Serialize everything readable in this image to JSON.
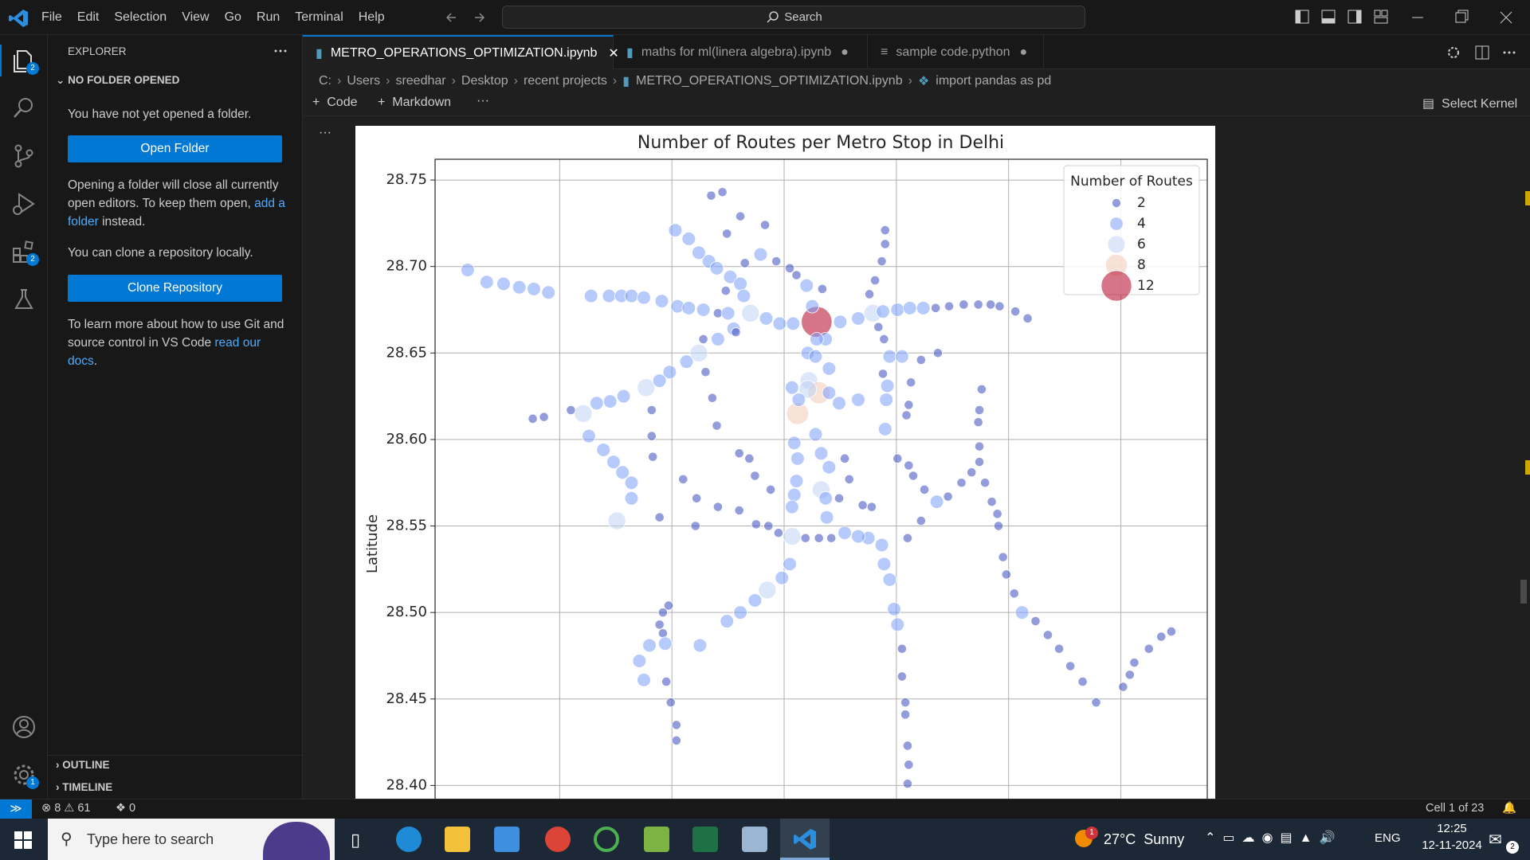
{
  "menu": [
    "File",
    "Edit",
    "Selection",
    "View",
    "Go",
    "Run",
    "Terminal",
    "Help"
  ],
  "search": "Search",
  "activity_badges": {
    "explorer": "2",
    "extensions": "2",
    "settings": "1"
  },
  "tabs": [
    {
      "label": "METRO_OPERATIONS_OPTIMIZATION.ipynb"
    },
    {
      "label": "maths for ml(linera algebra).ipynb"
    },
    {
      "label": "sample code.python"
    }
  ],
  "breadcrumbs": [
    "C:",
    "Users",
    "sreedhar",
    "Desktop",
    "recent projects",
    "METRO_OPERATIONS_OPTIMIZATION.ipynb",
    "import pandas as pd"
  ],
  "toolbar": {
    "code": "Code",
    "markdown": "Markdown",
    "kernel": "Select Kernel"
  },
  "sidebar": {
    "title": "EXPLORER",
    "section": "NO FOLDER OPENED",
    "text1": "You have not yet opened a folder.",
    "open_button": "Open Folder",
    "text2_before": "Opening a folder will close all currently open editors. To keep them open,",
    "text2_link": "add a folder",
    "text2_after": "instead.",
    "text3": "You can clone a repository locally.",
    "clone_button": "Clone Repository",
    "text4_before": "To learn more about how to use Git and source control in VS Code",
    "text4_link": "read our docs",
    "text4_after": ".",
    "outline": "OUTLINE",
    "timeline": "TIMELINE"
  },
  "status": {
    "errors": 8,
    "warnings": 61,
    "ports": 0,
    "cell": "Cell 1 of 23"
  },
  "taskbar": {
    "search": "Type here to search",
    "weather_badge": "1",
    "weather": "27°C  Sunny",
    "lang": "ENG",
    "time": "12:25",
    "date": "12-11-2024",
    "notifications": "2"
  },
  "chart_data": {
    "type": "scatter",
    "title": "Number of Routes per Metro Stop in Delhi",
    "y_label": "Latitude",
    "xlim": [
      76.889,
      77.577
    ],
    "xticks": [
      77.0,
      77.1,
      77.2,
      77.3,
      77.4,
      77.5
    ],
    "ylim": [
      28.385,
      28.762
    ],
    "yticks": [
      {
        "value": 28.4,
        "label": "28.40"
      },
      28.45,
      {
        "value": 28.5,
        "label": "28.50"
      },
      28.55,
      {
        "value": 28.6,
        "label": "28.60"
      },
      28.65,
      {
        "value": 28.7,
        "label": "28.70"
      },
      28.75
    ],
    "grid": true,
    "legend": {
      "title": "Number of Routes",
      "position": "upper right",
      "entries": [
        2,
        4,
        6,
        8,
        12
      ],
      "colors": [
        "#3b4cc0",
        "#7b9ff9",
        "#c0d4f5",
        "#f2cbb7",
        "#b40426"
      ]
    },
    "x": [
      76.918,
      76.935,
      76.95,
      76.964,
      76.977,
      76.99,
      77.028,
      77.044,
      77.055,
      77.064,
      77.075,
      77.091,
      77.105,
      77.115,
      77.128,
      77.141,
      77.15,
      77.17,
      77.184,
      77.196,
      77.208,
      77.229,
      77.25,
      77.266,
      77.279,
      77.288,
      77.301,
      77.312,
      77.324,
      77.335,
      77.347,
      77.36,
      77.373,
      77.384,
      77.392,
      77.406,
      77.417,
      77.103,
      77.115,
      77.124,
      77.133,
      77.14,
      77.152,
      77.161,
      77.164,
      77.051,
      77.064,
      77.064,
      77.056,
      77.048,
      77.039,
      77.026,
      77.021,
      77.033,
      77.045,
      77.057,
      77.077,
      77.089,
      77.098,
      77.113,
      77.124,
      77.141,
      77.155,
      77.205,
      77.211,
      77.22,
      77.225,
      77.237,
      77.221,
      77.24,
      77.222,
      77.212,
      77.228,
      77.209,
      77.212,
      77.233,
      77.24,
      77.211,
      77.233,
      77.209,
      77.237,
      77.207,
      77.238,
      77.207,
      77.205,
      77.198,
      77.185,
      77.174,
      77.161,
      77.149,
      77.266,
      77.249,
      77.231,
      77.24,
      77.221,
      77.207,
      77.29,
      77.29,
      77.287,
      77.281,
      77.276,
      77.284,
      77.289,
      77.294,
      77.288,
      77.292,
      77.291,
      77.29,
      77.301,
      77.311,
      77.315,
      77.325,
      77.336,
      77.346,
      77.358,
      77.367,
      77.374,
      77.374,
      77.373,
      77.374,
      77.376,
      77.379,
      77.385,
      77.39,
      77.391,
      77.395,
      77.398,
      77.405,
      77.412,
      77.424,
      77.435,
      77.445,
      77.455,
      77.466,
      77.478,
      77.502,
      77.508,
      77.512,
      77.525,
      77.536,
      77.545,
      77.298,
      77.301,
      77.305,
      77.305,
      77.308,
      77.308,
      77.31,
      77.311,
      77.31,
      77.294,
      77.289,
      77.287,
      77.275,
      77.266,
      77.254,
      77.242,
      77.231,
      77.219,
      77.195,
      77.186,
      77.175,
      77.16,
      77.141,
      77.121,
      77.097,
      77.092,
      77.089,
      77.092,
      77.094,
      77.08,
      77.071,
      77.075,
      77.095,
      77.099,
      77.104,
      77.104,
      77.125,
      77.089,
      77.135,
      77.145,
      77.161,
      77.149,
      77.183,
      77.165,
      77.179,
      77.193,
      77.148,
      77.157,
      77.128,
      77.13,
      77.136,
      77.14,
      77.082,
      77.082,
      77.083,
      77.11,
      77.122,
      77.16,
      77.169,
      77.174,
      77.188,
      77.254,
      77.258,
      77.249,
      77.278,
      77.311,
      77.309,
      77.313,
      77.322,
      77.337,
      76.976,
      76.986,
      77.01,
      77.31,
      77.322,
      77.305,
      77.27,
      77.229,
      77.228,
      77.213,
      77.234
    ],
    "y": [
      28.698,
      28.691,
      28.69,
      28.688,
      28.687,
      28.685,
      28.683,
      28.683,
      28.683,
      28.683,
      28.682,
      28.68,
      28.677,
      28.676,
      28.675,
      28.673,
      28.673,
      28.673,
      28.67,
      28.667,
      28.667,
      28.668,
      28.668,
      28.67,
      28.673,
      28.674,
      28.675,
      28.676,
      28.676,
      28.676,
      28.677,
      28.678,
      28.678,
      28.678,
      28.677,
      28.674,
      28.67,
      28.721,
      28.716,
      28.708,
      28.703,
      28.699,
      28.694,
      28.69,
      28.683,
      28.553,
      28.566,
      28.575,
      28.581,
      28.587,
      28.594,
      28.602,
      28.615,
      28.621,
      28.622,
      28.625,
      28.63,
      28.634,
      28.639,
      28.645,
      28.65,
      28.658,
      28.664,
      28.699,
      28.695,
      28.689,
      28.677,
      28.658,
      28.65,
      28.641,
      28.634,
      28.615,
      28.603,
      28.598,
      28.589,
      28.592,
      28.584,
      28.576,
      28.571,
      28.568,
      28.566,
      28.561,
      28.555,
      28.544,
      28.528,
      28.52,
      28.513,
      28.507,
      28.5,
      28.495,
      28.623,
      28.621,
      28.627,
      28.627,
      28.629,
      28.63,
      28.721,
      28.713,
      28.703,
      28.692,
      28.684,
      28.665,
      28.658,
      28.648,
      28.638,
      28.631,
      28.623,
      28.606,
      28.589,
      28.585,
      28.579,
      28.571,
      28.564,
      28.567,
      28.575,
      28.581,
      28.587,
      28.596,
      28.61,
      28.617,
      28.629,
      28.575,
      28.564,
      28.557,
      28.55,
      28.532,
      28.522,
      28.511,
      28.5,
      28.495,
      28.487,
      28.479,
      28.469,
      28.46,
      28.448,
      28.457,
      28.464,
      28.471,
      28.479,
      28.486,
      28.489,
      28.502,
      28.493,
      28.479,
      28.463,
      28.448,
      28.441,
      28.423,
      28.412,
      28.401,
      28.519,
      28.528,
      28.539,
      28.543,
      28.544,
      28.546,
      28.543,
      28.543,
      28.543,
      28.546,
      28.55,
      28.551,
      28.559,
      28.561,
      28.55,
      28.504,
      28.5,
      28.493,
      28.488,
      28.482,
      28.481,
      28.472,
      28.461,
      28.46,
      28.448,
      28.435,
      28.426,
      28.481,
      28.555,
      28.741,
      28.743,
      28.729,
      28.719,
      28.724,
      28.702,
      28.707,
      28.703,
      28.686,
      28.662,
      28.658,
      28.639,
      28.624,
      28.608,
      28.617,
      28.602,
      28.59,
      28.577,
      28.566,
      28.592,
      28.589,
      28.579,
      28.571,
      28.589,
      28.577,
      28.566,
      28.561,
      28.62,
      28.614,
      28.633,
      28.646,
      28.65,
      28.612,
      28.613,
      28.617,
      28.543,
      28.553,
      28.648,
      28.562,
      28.658,
      28.648,
      28.623,
      28.687
    ],
    "sizes": [
      4,
      4,
      4,
      4,
      4,
      4,
      4,
      4,
      4,
      4,
      4,
      4,
      4,
      4,
      4,
      2,
      4,
      6,
      4,
      4,
      4,
      12,
      4,
      4,
      6,
      4,
      4,
      4,
      4,
      2,
      2,
      2,
      2,
      2,
      2,
      2,
      2,
      4,
      4,
      4,
      4,
      4,
      4,
      4,
      4,
      6,
      4,
      4,
      4,
      4,
      4,
      4,
      6,
      4,
      4,
      4,
      6,
      4,
      4,
      4,
      6,
      4,
      4,
      2,
      2,
      4,
      4,
      4,
      4,
      4,
      6,
      8,
      4,
      4,
      4,
      4,
      4,
      4,
      6,
      4,
      4,
      4,
      4,
      6,
      4,
      4,
      6,
      4,
      4,
      4,
      4,
      4,
      8,
      4,
      6,
      4,
      2,
      2,
      2,
      2,
      2,
      2,
      2,
      4,
      2,
      4,
      4,
      4,
      2,
      2,
      2,
      2,
      4,
      2,
      2,
      2,
      2,
      2,
      2,
      2,
      2,
      2,
      2,
      2,
      2,
      2,
      2,
      2,
      4,
      2,
      2,
      2,
      2,
      2,
      2,
      2,
      2,
      2,
      2,
      2,
      2,
      4,
      4,
      2,
      2,
      2,
      2,
      2,
      2,
      2,
      4,
      4,
      4,
      4,
      4,
      4,
      2,
      2,
      2,
      2,
      2,
      2,
      2,
      2,
      2,
      2,
      2,
      2,
      2,
      4,
      4,
      4,
      4,
      2,
      2,
      2,
      2,
      4,
      2,
      2,
      2,
      2,
      2,
      2,
      2,
      4,
      2,
      2,
      2,
      2,
      2,
      2,
      2,
      2,
      2,
      2,
      2,
      2,
      2,
      2,
      2,
      2,
      2,
      2,
      2,
      2,
      2,
      2,
      2,
      2,
      2,
      2,
      2,
      2,
      2,
      2,
      4,
      2,
      4,
      4,
      4,
      2
    ]
  }
}
